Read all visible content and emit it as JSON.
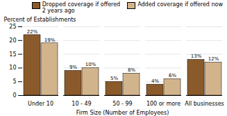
{
  "chart_data": {
    "type": "bar",
    "xlabel": "Firm Size (Number of Employees)",
    "ylabel": "Percent of Establishments",
    "categories": [
      "Under 10",
      "10 - 49",
      "50 - 99",
      "100 or more",
      "All businesses"
    ],
    "series": [
      {
        "name": "Dropped coverage if offered\n2 years ago",
        "color": "#8B5A2B",
        "values": [
          22,
          9,
          5,
          4,
          13
        ],
        "value_labels": [
          "22%",
          "9%",
          "5%",
          "4%",
          "13%"
        ]
      },
      {
        "name": "Added coverage if offered now",
        "color": "#D2B48C",
        "values": [
          19,
          10,
          8,
          6,
          12
        ],
        "value_labels": [
          "19%",
          "10%",
          "8%",
          "6%",
          "12%"
        ]
      }
    ],
    "ylim": [
      0,
      25
    ],
    "yticks": [
      0,
      5,
      10,
      15,
      20,
      25
    ],
    "grid": true,
    "legend": "upper right",
    "data_labels": true
  }
}
